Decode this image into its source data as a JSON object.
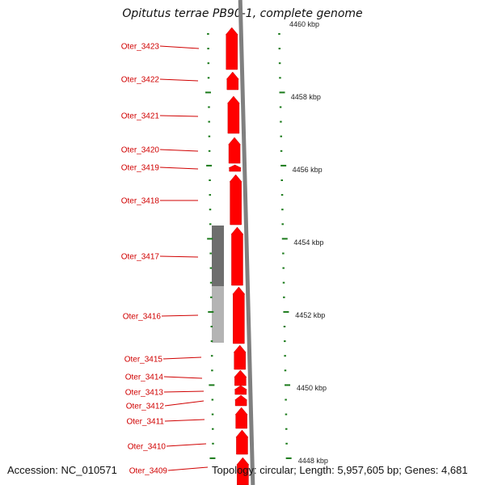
{
  "title": "Opitutus terrae PB90-1, complete genome",
  "footer": {
    "accession": "Accession: NC_010571",
    "topology": "Topology: circular; Length: 5,957,605 bp; Genes: 4,681"
  },
  "colors": {
    "gene": "#ff0000",
    "gene_label": "#d00000",
    "tick": "#1a7a1a",
    "backbone": "#808080",
    "highlight_dark": "#6e6e6e",
    "highlight_light": "#b4b4b4"
  },
  "scale": {
    "unit": "kbp",
    "labels": [
      "4460 kbp",
      "4458 kbp",
      "4456 kbp",
      "4454 kbp",
      "4452 kbp",
      "4450 kbp",
      "4448 kbp"
    ]
  },
  "genes": [
    {
      "name": "Oter_3423"
    },
    {
      "name": "Oter_3422"
    },
    {
      "name": "Oter_3421"
    },
    {
      "name": "Oter_3420"
    },
    {
      "name": "Oter_3419"
    },
    {
      "name": "Oter_3418"
    },
    {
      "name": "Oter_3417"
    },
    {
      "name": "Oter_3416"
    },
    {
      "name": "Oter_3415"
    },
    {
      "name": "Oter_3414"
    },
    {
      "name": "Oter_3413"
    },
    {
      "name": "Oter_3412"
    },
    {
      "name": "Oter_3411"
    },
    {
      "name": "Oter_3410"
    },
    {
      "name": "Oter_3409"
    }
  ]
}
